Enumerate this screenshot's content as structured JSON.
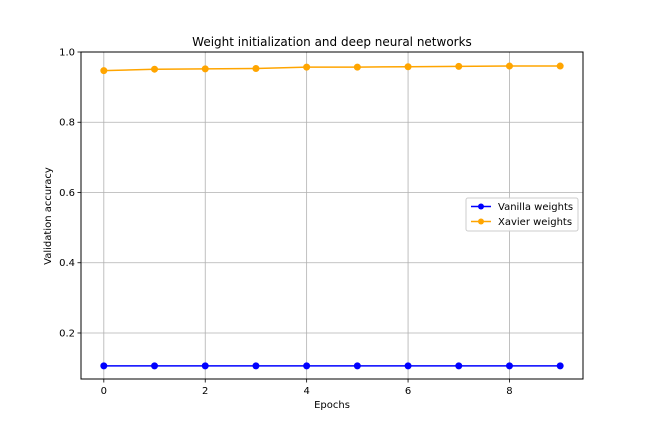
{
  "chart_data": {
    "type": "line",
    "title": "Weight initialization and deep neural networks",
    "xlabel": "Epochs",
    "ylabel": "Validation accuracy",
    "x": [
      0,
      1,
      2,
      3,
      4,
      5,
      6,
      7,
      8,
      9
    ],
    "xlim": [
      -0.45,
      9.45
    ],
    "ylim": [
      0.069,
      1.0
    ],
    "xticks": [
      "0",
      "2",
      "4",
      "6",
      "8"
    ],
    "yticks": [
      "0.2",
      "0.4",
      "0.6",
      "0.8",
      "1.0"
    ],
    "grid": true,
    "legend_position": "center-right",
    "series": [
      {
        "name": "Vanilla weights",
        "color": "#0000ff",
        "values": [
          0.1064,
          0.1064,
          0.1064,
          0.1064,
          0.1064,
          0.1064,
          0.1064,
          0.1064,
          0.1064,
          0.1064
        ]
      },
      {
        "name": "Xavier weights",
        "color": "#ffa500",
        "values": [
          0.947,
          0.951,
          0.952,
          0.953,
          0.957,
          0.957,
          0.958,
          0.959,
          0.96,
          0.96
        ]
      }
    ]
  }
}
